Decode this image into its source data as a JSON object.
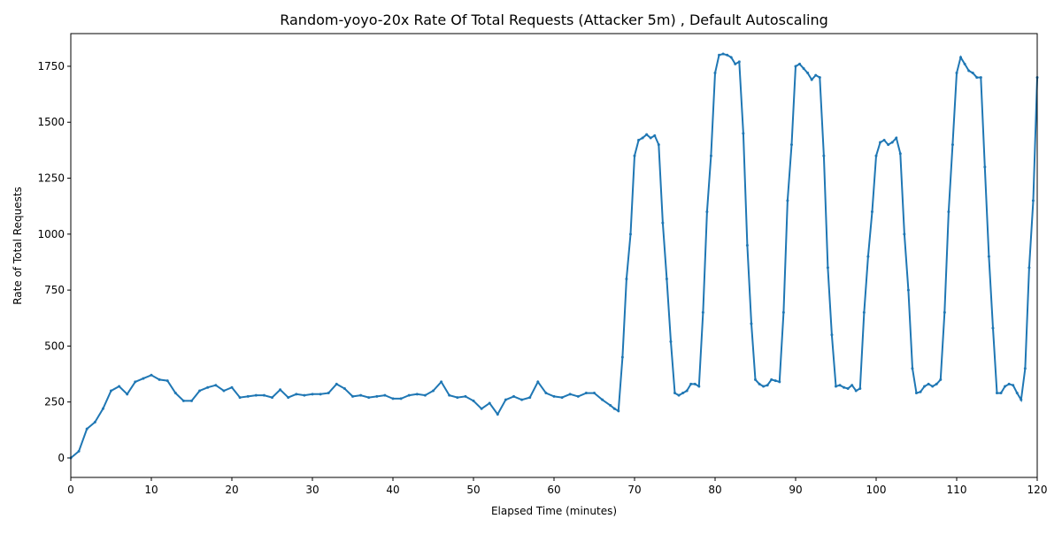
{
  "chart_data": {
    "type": "line",
    "title": "Random-yoyo-20x Rate Of Total Requests (Attacker 5m) , Default Autoscaling",
    "xlabel": "Elapsed Time (minutes)",
    "ylabel": "Rate of Total Requests",
    "color": "#1f77b4",
    "x": [
      0,
      1,
      2,
      3,
      4,
      5,
      6,
      7,
      8,
      9,
      10,
      11,
      12,
      13,
      14,
      15,
      16,
      17,
      18,
      19,
      20,
      21,
      22,
      23,
      24,
      25,
      26,
      27,
      28,
      29,
      30,
      31,
      32,
      33,
      34,
      35,
      36,
      37,
      38,
      39,
      40,
      41,
      42,
      43,
      44,
      45,
      46,
      47,
      48,
      49,
      50,
      51,
      52,
      53,
      54,
      55,
      56,
      57,
      58,
      59,
      60,
      61,
      62,
      63,
      64,
      65,
      66,
      67,
      67.5,
      68,
      68.5,
      69,
      69.5,
      70,
      70.5,
      71,
      71.5,
      72,
      72.5,
      73,
      73.5,
      74,
      74.5,
      75,
      75.5,
      76,
      76.5,
      77,
      77.5,
      78,
      78.5,
      79,
      79.5,
      80,
      80.5,
      81,
      81.5,
      82,
      82.5,
      83,
      83.5,
      84,
      84.5,
      85,
      85.5,
      86,
      86.5,
      87,
      87.5,
      88,
      88.5,
      89,
      89.5,
      90,
      90.5,
      91,
      91.5,
      92,
      92.5,
      93,
      93.5,
      94,
      94.5,
      95,
      95.5,
      96,
      96.5,
      97,
      97.5,
      98,
      98.5,
      99,
      99.5,
      100,
      100.5,
      101,
      101.5,
      102,
      102.5,
      103,
      103.5,
      104,
      104.5,
      105,
      105.5,
      106,
      106.5,
      107,
      107.5,
      108,
      108.5,
      109,
      109.5,
      110,
      110.5,
      111,
      111.5,
      112,
      112.5,
      113,
      113.5,
      114,
      114.5,
      115,
      115.5,
      116,
      116.5,
      117,
      117.5,
      118,
      118.5,
      119,
      119.5,
      120
    ],
    "values": [
      0,
      30,
      130,
      160,
      220,
      300,
      320,
      285,
      340,
      355,
      370,
      350,
      345,
      290,
      255,
      255,
      300,
      315,
      325,
      300,
      315,
      270,
      275,
      280,
      280,
      270,
      305,
      270,
      285,
      280,
      285,
      285,
      290,
      330,
      310,
      275,
      280,
      270,
      275,
      280,
      265,
      265,
      280,
      285,
      280,
      300,
      340,
      280,
      270,
      275,
      255,
      220,
      245,
      195,
      260,
      275,
      260,
      270,
      340,
      290,
      275,
      270,
      285,
      275,
      290,
      290,
      260,
      235,
      220,
      210,
      450,
      800,
      1000,
      1350,
      1420,
      1430,
      1445,
      1430,
      1440,
      1400,
      1050,
      800,
      520,
      290,
      280,
      290,
      300,
      330,
      330,
      320,
      650,
      1100,
      1350,
      1720,
      1800,
      1805,
      1800,
      1790,
      1760,
      1770,
      1450,
      950,
      600,
      350,
      330,
      320,
      325,
      350,
      345,
      340,
      650,
      1150,
      1400,
      1750,
      1760,
      1740,
      1720,
      1690,
      1710,
      1700,
      1350,
      850,
      550,
      320,
      325,
      315,
      310,
      325,
      300,
      310,
      650,
      900,
      1100,
      1350,
      1410,
      1420,
      1400,
      1410,
      1430,
      1360,
      1000,
      750,
      400,
      290,
      295,
      320,
      330,
      320,
      330,
      350,
      650,
      1100,
      1400,
      1720,
      1790,
      1760,
      1730,
      1720,
      1700,
      1700,
      1300,
      900,
      580,
      290,
      290,
      320,
      330,
      325,
      290,
      260,
      400,
      850,
      1150,
      1700
    ],
    "xlim": [
      0,
      120
    ],
    "ylim": [
      -87,
      1896
    ],
    "xticks": [
      0,
      10,
      20,
      30,
      40,
      50,
      60,
      70,
      80,
      90,
      100,
      110,
      120
    ],
    "yticks": [
      0,
      250,
      500,
      750,
      1000,
      1250,
      1500,
      1750
    ]
  }
}
